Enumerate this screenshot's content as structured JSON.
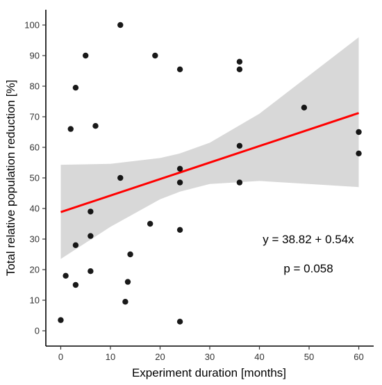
{
  "chart_data": {
    "type": "scatter",
    "xlabel": "Experiment duration [months]",
    "ylabel": "Total relative population reduction [%]",
    "xlim": [
      -3,
      63
    ],
    "ylim": [
      -5,
      105
    ],
    "xticks": [
      0,
      10,
      20,
      30,
      40,
      50,
      60
    ],
    "yticks": [
      0,
      10,
      20,
      30,
      40,
      50,
      60,
      70,
      80,
      90,
      100
    ],
    "grid": false,
    "points": [
      {
        "x": 0,
        "y": 3.5
      },
      {
        "x": 1,
        "y": 18
      },
      {
        "x": 2,
        "y": 66
      },
      {
        "x": 3,
        "y": 79.5
      },
      {
        "x": 3,
        "y": 28
      },
      {
        "x": 3,
        "y": 15
      },
      {
        "x": 5,
        "y": 90
      },
      {
        "x": 6,
        "y": 39
      },
      {
        "x": 6,
        "y": 31
      },
      {
        "x": 6,
        "y": 19.5
      },
      {
        "x": 7,
        "y": 67
      },
      {
        "x": 12,
        "y": 100
      },
      {
        "x": 12,
        "y": 50
      },
      {
        "x": 13,
        "y": 9.5
      },
      {
        "x": 13.5,
        "y": 16
      },
      {
        "x": 14,
        "y": 25
      },
      {
        "x": 18,
        "y": 35
      },
      {
        "x": 19,
        "y": 90
      },
      {
        "x": 24,
        "y": 85.5
      },
      {
        "x": 24,
        "y": 53
      },
      {
        "x": 24,
        "y": 48.5
      },
      {
        "x": 24,
        "y": 33
      },
      {
        "x": 24,
        "y": 3
      },
      {
        "x": 36,
        "y": 88
      },
      {
        "x": 36,
        "y": 85.5
      },
      {
        "x": 36,
        "y": 60.5
      },
      {
        "x": 36,
        "y": 48.5
      },
      {
        "x": 49,
        "y": 73
      },
      {
        "x": 60,
        "y": 65
      },
      {
        "x": 60,
        "y": 58
      }
    ],
    "regression": {
      "intercept": 38.82,
      "slope": 0.54,
      "x_range": [
        0,
        60
      ]
    },
    "confidence_band": [
      {
        "x": 0,
        "lower": 23.5,
        "upper": 54.3
      },
      {
        "x": 10,
        "lower": 34.0,
        "upper": 54.6
      },
      {
        "x": 20,
        "lower": 43.0,
        "upper": 56.5
      },
      {
        "x": 24,
        "lower": 45.5,
        "upper": 58.0
      },
      {
        "x": 30,
        "lower": 48.0,
        "upper": 61.5
      },
      {
        "x": 40,
        "lower": 49.0,
        "upper": 71.0
      },
      {
        "x": 50,
        "lower": 48.0,
        "upper": 83.5
      },
      {
        "x": 60,
        "lower": 47.0,
        "upper": 96.0
      }
    ],
    "annotations": {
      "equation": "y = 38.82 + 0.54x",
      "p_value": "p = 0.058"
    },
    "colors": {
      "points": "#000000",
      "regression_line": "#ff0000",
      "confidence_band": "#bebebe"
    }
  }
}
